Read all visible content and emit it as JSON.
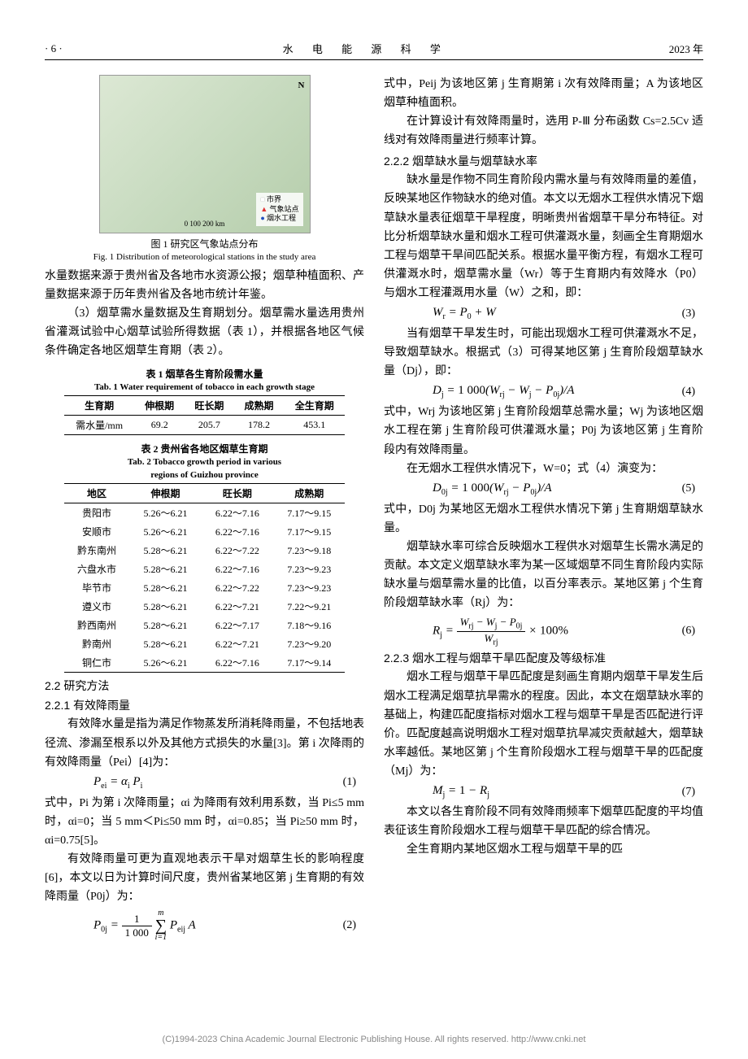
{
  "header": {
    "left": "· 6 ·",
    "center": "水 电 能 源 科 学",
    "right": "2023 年"
  },
  "figure1": {
    "legend": {
      "l1": "市界",
      "l2": "气象站点",
      "l3": "烟水工程"
    },
    "compass": "N",
    "scale": "0     100    200 km",
    "cap_cn": "图 1  研究区气象站点分布",
    "cap_en": "Fig. 1  Distribution of meteorological stations in the study area"
  },
  "left": {
    "p1": "水量数据来源于贵州省及各地市水资源公报；烟草种植面积、产量数据来源于历年贵州省及各地市统计年鉴。",
    "p2": "（3）烟草需水量数据及生育期划分。烟草需水量选用贵州省灌溉试验中心烟草试验所得数据（表 1），并根据各地区气候条件确定各地区烟草生育期（表 2）。"
  },
  "table1": {
    "title_cn": "表 1  烟草各生育阶段需水量",
    "title_en": "Tab. 1  Water requirement of tobacco in each growth stage",
    "headers": [
      "生育期",
      "伸根期",
      "旺长期",
      "成熟期",
      "全生育期"
    ],
    "row_label": "需水量/mm",
    "values": [
      "69.2",
      "205.7",
      "178.2",
      "453.1"
    ]
  },
  "table2": {
    "title_cn": "表 2  贵州省各地区烟草生育期",
    "title_en1": "Tab. 2  Tobacco growth period in various",
    "title_en2": "regions of Guizhou province",
    "headers": [
      "地区",
      "伸根期",
      "旺长期",
      "成熟期"
    ],
    "rows": [
      [
        "贵阳市",
        "5.26～6.21",
        "6.22～7.16",
        "7.17～9.15"
      ],
      [
        "安顺市",
        "5.26～6.21",
        "6.22～7.16",
        "7.17～9.15"
      ],
      [
        "黔东南州",
        "5.28～6.21",
        "6.22～7.22",
        "7.23～9.18"
      ],
      [
        "六盘水市",
        "5.28～6.21",
        "6.22～7.16",
        "7.23～9.23"
      ],
      [
        "毕节市",
        "5.28～6.21",
        "6.22～7.22",
        "7.23～9.23"
      ],
      [
        "遵义市",
        "5.28～6.21",
        "6.22～7.21",
        "7.22～9.21"
      ],
      [
        "黔西南州",
        "5.28～6.21",
        "6.22～7.17",
        "7.18～9.16"
      ],
      [
        "黔南州",
        "5.28～6.21",
        "6.22～7.21",
        "7.23～9.20"
      ],
      [
        "铜仁市",
        "5.26～6.21",
        "6.22～7.16",
        "7.17～9.14"
      ]
    ]
  },
  "sec22": "2.2  研究方法",
  "sec221": "2.2.1  有效降雨量",
  "p221a": "有效降水量是指为满足作物蒸发所消耗降雨量，不包括地表径流、渗漏至根系以外及其他方式损失的水量[3]。第 i 次降雨的有效降雨量（Pei）[4]为：",
  "eq1": {
    "body": "P<sub class='sub'>ei</sub> = α<sub class='sub'>i</sub> P<sub class='sub'>i</sub>",
    "num": "(1)"
  },
  "p221b": "式中，Pi 为第 i 次降雨量；αi 为降雨有效利用系数，当 Pi≤5 mm 时，αi=0；当 5 mm＜Pi≤50 mm 时，αi=0.85；当 Pi≥50 mm 时，αi=0.75[5]。",
  "p221c": "有效降雨量可更为直观地表示干旱对烟草生长的影响程度[6]，本文以日为计算时间尺度，贵州省某地区第 j 生育期的有效降雨量（P0j）为：",
  "eq2": {
    "num": "(2)"
  },
  "right": {
    "p1": "式中，Peij 为该地区第 j 生育期第 i 次有效降雨量；A 为该地区烟草种植面积。",
    "p2": "在计算设计有效降雨量时，选用 P-Ⅲ 分布函数 Cs=2.5Cv 适线对有效降雨量进行频率计算。"
  },
  "sec222": "2.2.2  烟草缺水量与烟草缺水率",
  "p222a": "缺水量是作物不同生育阶段内需水量与有效降雨量的差值，反映某地区作物缺水的绝对值。本文以无烟水工程供水情况下烟草缺水量表征烟草干旱程度，明晰贵州省烟草干旱分布特征。对比分析烟草缺水量和烟水工程可供灌溉水量，刻画全生育期烟水工程与烟草干旱间匹配关系。根据水量平衡方程，有烟水工程可供灌溉水时，烟草需水量（Wr）等于生育期内有效降水（P0）与烟水工程灌溉用水量（W）之和，即：",
  "eq3": {
    "body": "W<sub class='sub'>r</sub> = P<sub class='sub'>0</sub> + W",
    "num": "(3)"
  },
  "p222b": "当有烟草干旱发生时，可能出现烟水工程可供灌溉水不足，导致烟草缺水。根据式（3）可得某地区第 j 生育阶段烟草缺水量（Dj），即：",
  "eq4": {
    "body": "D<sub class='sub'>j</sub> = <span class='rm'>1 000</span>(W<sub class='sub'>rj</sub> − W<sub class='sub'>j</sub> − P<sub class='sub'>0j</sub>)/A",
    "num": "(4)"
  },
  "p222c": "式中，Wrj 为该地区第 j 生育阶段烟草总需水量；Wj 为该地区烟水工程在第 j 生育阶段可供灌溉水量；P0j 为该地区第 j 生育阶段内有效降雨量。",
  "p222d": "在无烟水工程供水情况下，W=0；式（4）演变为：",
  "eq5": {
    "body": "D<sub class='sub'>0j</sub> = <span class='rm'>1 000</span>(W<sub class='sub'>rj</sub> − P<sub class='sub'>0j</sub>)/A",
    "num": "(5)"
  },
  "p222e": "式中，D0j 为某地区无烟水工程供水情况下第 j 生育期烟草缺水量。",
  "p222f": "烟草缺水率可综合反映烟水工程供水对烟草生长需水满足的贡献。本文定义烟草缺水率为某一区域烟草不同生育阶段内实际缺水量与烟草需水量的比值，以百分率表示。某地区第 j 个生育阶段烟草缺水率（Rj）为：",
  "eq6": {
    "num": "(6)"
  },
  "sec223": "2.2.3  烟水工程与烟草干旱匹配度及等级标准",
  "p223a": "烟水工程与烟草干旱匹配度是刻画生育期内烟草干旱发生后烟水工程满足烟草抗旱需水的程度。因此，本文在烟草缺水率的基础上，构建匹配度指标对烟水工程与烟草干旱是否匹配进行评价。匹配度越高说明烟水工程对烟草抗旱减灾贡献越大，烟草缺水率越低。某地区第 j 个生育阶段烟水工程与烟草干旱的匹配度（Mj）为：",
  "eq7": {
    "body": "M<sub class='sub'>j</sub> = <span class='rm'>1</span> − R<sub class='sub'>j</sub>",
    "num": "(7)"
  },
  "p223b": "本文以各生育阶段不同有效降雨频率下烟草匹配度的平均值表征该生育阶段烟水工程与烟草干旱匹配的综合情况。",
  "p223c": "全生育期内某地区烟水工程与烟草干旱的匹",
  "footer": "(C)1994-2023 China Academic Journal Electronic Publishing House. All rights reserved.    http://www.cnki.net"
}
